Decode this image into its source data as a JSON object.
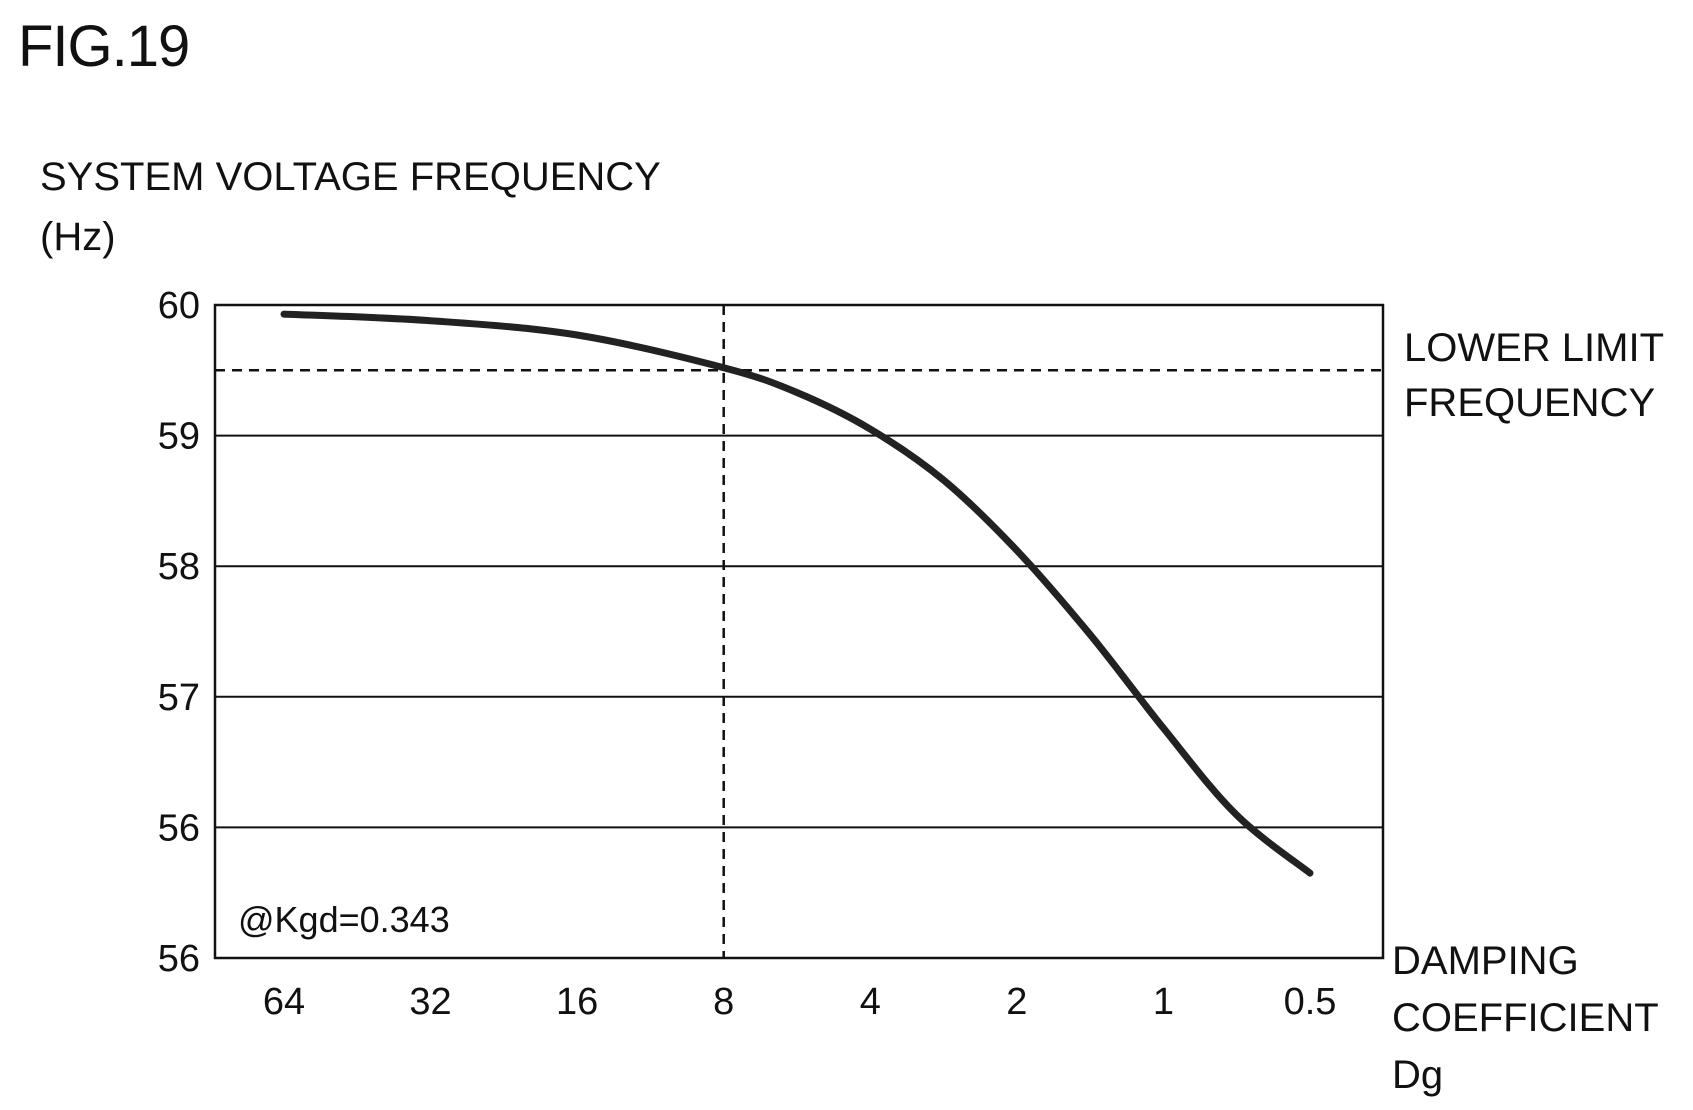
{
  "figure_title": "FIG.19",
  "chart_data": {
    "type": "line",
    "ylabel": "SYSTEM VOLTAGE FREQUENCY",
    "ylabel_unit": "(Hz)",
    "xlabel_lines": [
      "DAMPING",
      "COEFFICIENT",
      "Dg"
    ],
    "y_ticks": [
      "60",
      "59",
      "58",
      "57",
      "56",
      "56"
    ],
    "x_ticks": [
      "64",
      "32",
      "16",
      "8",
      "4",
      "2",
      "1",
      "0.5"
    ],
    "x_scale": "log2-reversed",
    "ylim": [
      55,
      60
    ],
    "grid": "horizontal",
    "lower_limit": {
      "label_lines": [
        "LOWER LIMIT",
        "FREQUENCY"
      ],
      "value": 59.5
    },
    "reference_x": 8,
    "annotation": "@Kgd=0.343",
    "series": [
      {
        "x": [
          64,
          32,
          16,
          8,
          5.66,
          4,
          2.83,
          2,
          1.41,
          1,
          0.71,
          0.5
        ],
        "y": [
          59.93,
          59.88,
          59.77,
          59.52,
          59.33,
          59.05,
          58.66,
          58.12,
          57.47,
          56.76,
          56.1,
          55.65
        ]
      }
    ]
  }
}
